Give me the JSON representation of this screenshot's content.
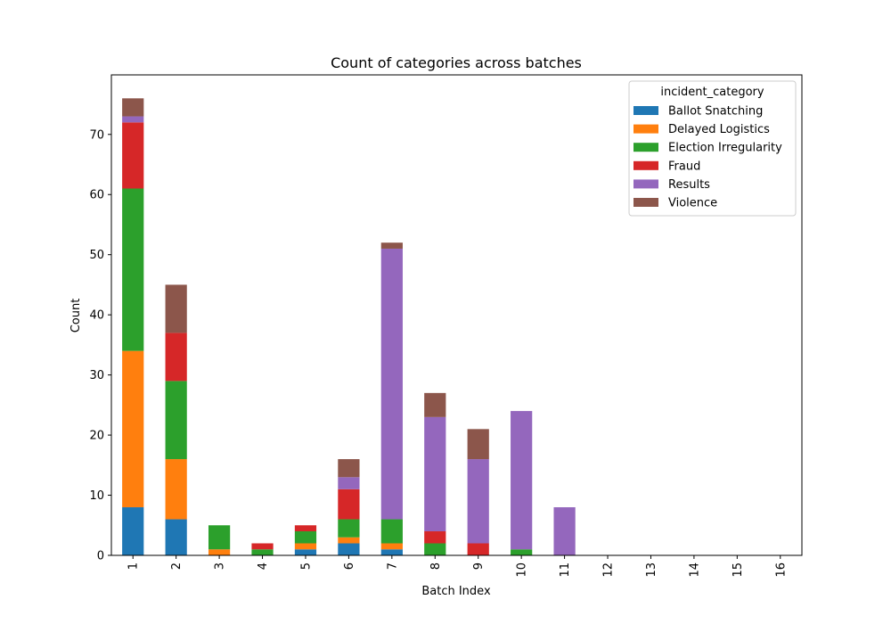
{
  "chart_data": {
    "type": "bar",
    "stacked": true,
    "title": "Count of categories across batches",
    "xlabel": "Batch Index",
    "ylabel": "Count",
    "ylim": [
      0,
      80
    ],
    "yticks": [
      0,
      10,
      20,
      30,
      40,
      50,
      60,
      70
    ],
    "categories": [
      "1",
      "2",
      "3",
      "4",
      "5",
      "6",
      "7",
      "8",
      "9",
      "10",
      "11",
      "12",
      "13",
      "14",
      "15",
      "16"
    ],
    "legend_title": "incident_category",
    "legend_position": "top-right",
    "grid": false,
    "series": [
      {
        "name": "Ballot Snatching",
        "color": "#1f77b4",
        "values": [
          8,
          6,
          0,
          0,
          1,
          2,
          1,
          0,
          0,
          0,
          0,
          0,
          0,
          0,
          0,
          0
        ]
      },
      {
        "name": "Delayed Logistics",
        "color": "#ff7f0e",
        "values": [
          26,
          10,
          1,
          0,
          1,
          1,
          1,
          0,
          0,
          0,
          0,
          0,
          0,
          0,
          0,
          0
        ]
      },
      {
        "name": "Election Irregularity",
        "color": "#2ca02c",
        "values": [
          27,
          13,
          4,
          1,
          2,
          3,
          4,
          2,
          0,
          1,
          0,
          0,
          0,
          0,
          0,
          0
        ]
      },
      {
        "name": "Fraud",
        "color": "#d62728",
        "values": [
          11,
          8,
          0,
          1,
          1,
          5,
          0,
          2,
          2,
          0,
          0,
          0,
          0,
          0,
          0,
          0
        ]
      },
      {
        "name": "Results",
        "color": "#9467bd",
        "values": [
          1,
          0,
          0,
          0,
          0,
          2,
          45,
          19,
          14,
          23,
          8,
          0,
          0,
          0,
          0,
          0
        ]
      },
      {
        "name": "Violence",
        "color": "#8c564b",
        "values": [
          3,
          8,
          0,
          0,
          0,
          3,
          1,
          4,
          5,
          0,
          0,
          0,
          0,
          0,
          0,
          0
        ]
      }
    ]
  }
}
